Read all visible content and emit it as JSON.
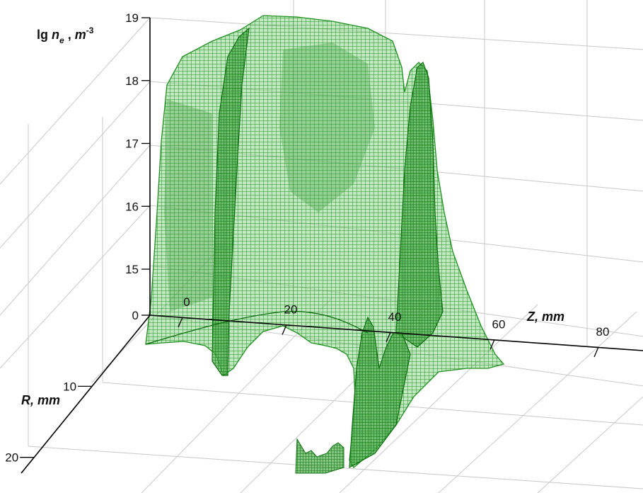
{
  "chart_data": {
    "type": "surface",
    "zlabel": {
      "base": "lg ",
      "var": "n",
      "sub": "e",
      "sep": " , ",
      "unit": "m",
      "exp": "-3"
    },
    "xlabel": "Z, mm",
    "ylabel": "R, mm",
    "z_ticks": [
      "0",
      "15",
      "16",
      "17",
      "18",
      "19"
    ],
    "x_ticks": [
      "0",
      "20",
      "40",
      "60",
      "80"
    ],
    "y_ticks": [
      "10",
      "20"
    ],
    "zlim": [
      15,
      19
    ],
    "xlim": [
      0,
      80
    ],
    "ylim": [
      0,
      20
    ],
    "grid": true,
    "colors": {
      "surface": "#1f8f1f",
      "surface_dark": "#0c6e0c",
      "surface_fill": "#5fbf5f",
      "grid": "#c8c8c8",
      "axis": "#000000"
    }
  }
}
